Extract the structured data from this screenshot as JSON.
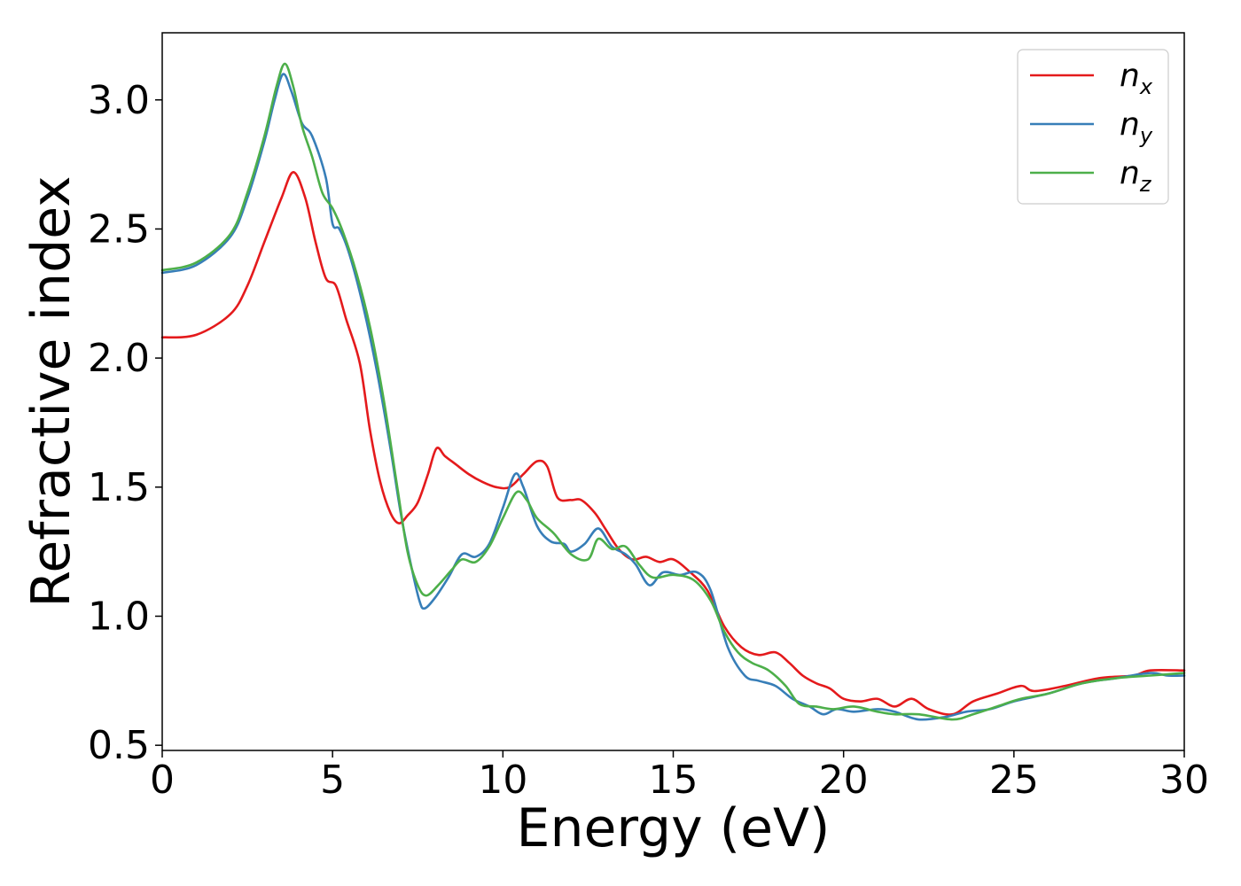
{
  "chart_data": {
    "type": "line",
    "xlabel": "Energy (eV)",
    "ylabel": "Refractive index",
    "xlim": [
      0,
      30
    ],
    "ylim": [
      0.48,
      3.26
    ],
    "xticks": [
      0,
      5,
      10,
      15,
      20,
      25,
      30
    ],
    "xtick_labels": [
      "0",
      "5",
      "10",
      "15",
      "20",
      "25",
      "30"
    ],
    "yticks": [
      0.5,
      1.0,
      1.5,
      2.0,
      2.5,
      3.0
    ],
    "ytick_labels": [
      "0.5",
      "1.0",
      "1.5",
      "2.0",
      "2.5",
      "3.0"
    ],
    "grid": false,
    "legend_position": "top-right",
    "series": [
      {
        "name": "n",
        "subscript": "x",
        "color": "#e41a1c",
        "points": [
          [
            0,
            2.08
          ],
          [
            1.0,
            2.09
          ],
          [
            2.0,
            2.17
          ],
          [
            2.5,
            2.28
          ],
          [
            3.0,
            2.45
          ],
          [
            3.5,
            2.62
          ],
          [
            3.85,
            2.72
          ],
          [
            4.2,
            2.62
          ],
          [
            4.5,
            2.45
          ],
          [
            4.8,
            2.31
          ],
          [
            5.1,
            2.28
          ],
          [
            5.4,
            2.15
          ],
          [
            5.8,
            1.98
          ],
          [
            6.1,
            1.72
          ],
          [
            6.4,
            1.52
          ],
          [
            6.7,
            1.4
          ],
          [
            6.95,
            1.36
          ],
          [
            7.2,
            1.39
          ],
          [
            7.5,
            1.44
          ],
          [
            7.8,
            1.55
          ],
          [
            8.05,
            1.65
          ],
          [
            8.3,
            1.62
          ],
          [
            8.6,
            1.59
          ],
          [
            9.0,
            1.55
          ],
          [
            9.4,
            1.52
          ],
          [
            9.8,
            1.5
          ],
          [
            10.2,
            1.5
          ],
          [
            10.6,
            1.55
          ],
          [
            11.0,
            1.6
          ],
          [
            11.3,
            1.58
          ],
          [
            11.6,
            1.46
          ],
          [
            12.0,
            1.45
          ],
          [
            12.3,
            1.45
          ],
          [
            12.7,
            1.4
          ],
          [
            13.0,
            1.34
          ],
          [
            13.4,
            1.26
          ],
          [
            13.8,
            1.22
          ],
          [
            14.2,
            1.23
          ],
          [
            14.6,
            1.21
          ],
          [
            15.0,
            1.22
          ],
          [
            15.5,
            1.17
          ],
          [
            16.0,
            1.1
          ],
          [
            16.5,
            0.96
          ],
          [
            17.0,
            0.88
          ],
          [
            17.5,
            0.85
          ],
          [
            18.0,
            0.86
          ],
          [
            18.4,
            0.82
          ],
          [
            18.8,
            0.77
          ],
          [
            19.2,
            0.74
          ],
          [
            19.6,
            0.72
          ],
          [
            20.0,
            0.68
          ],
          [
            20.5,
            0.67
          ],
          [
            21.0,
            0.68
          ],
          [
            21.5,
            0.65
          ],
          [
            22.0,
            0.68
          ],
          [
            22.5,
            0.64
          ],
          [
            23.2,
            0.62
          ],
          [
            23.8,
            0.67
          ],
          [
            24.5,
            0.7
          ],
          [
            25.2,
            0.73
          ],
          [
            25.6,
            0.71
          ],
          [
            26.5,
            0.73
          ],
          [
            27.5,
            0.76
          ],
          [
            28.5,
            0.77
          ],
          [
            29.0,
            0.79
          ],
          [
            30.0,
            0.79
          ]
        ]
      },
      {
        "name": "n",
        "subscript": "y",
        "color": "#377eb8",
        "points": [
          [
            0,
            2.33
          ],
          [
            1.0,
            2.36
          ],
          [
            2.0,
            2.47
          ],
          [
            2.5,
            2.62
          ],
          [
            3.0,
            2.84
          ],
          [
            3.3,
            3.0
          ],
          [
            3.55,
            3.1
          ],
          [
            3.8,
            3.03
          ],
          [
            4.1,
            2.91
          ],
          [
            4.4,
            2.86
          ],
          [
            4.8,
            2.7
          ],
          [
            5.0,
            2.52
          ],
          [
            5.2,
            2.5
          ],
          [
            5.5,
            2.4
          ],
          [
            5.9,
            2.2
          ],
          [
            6.3,
            1.95
          ],
          [
            6.7,
            1.65
          ],
          [
            7.0,
            1.4
          ],
          [
            7.3,
            1.2
          ],
          [
            7.55,
            1.06
          ],
          [
            7.7,
            1.03
          ],
          [
            8.0,
            1.07
          ],
          [
            8.4,
            1.15
          ],
          [
            8.8,
            1.24
          ],
          [
            9.2,
            1.23
          ],
          [
            9.6,
            1.28
          ],
          [
            10.0,
            1.42
          ],
          [
            10.35,
            1.55
          ],
          [
            10.6,
            1.5
          ],
          [
            11.0,
            1.35
          ],
          [
            11.4,
            1.29
          ],
          [
            11.8,
            1.28
          ],
          [
            12.0,
            1.25
          ],
          [
            12.4,
            1.28
          ],
          [
            12.8,
            1.34
          ],
          [
            13.2,
            1.27
          ],
          [
            13.6,
            1.24
          ],
          [
            13.9,
            1.2
          ],
          [
            14.3,
            1.12
          ],
          [
            14.7,
            1.17
          ],
          [
            15.2,
            1.16
          ],
          [
            15.7,
            1.17
          ],
          [
            16.1,
            1.1
          ],
          [
            16.6,
            0.88
          ],
          [
            17.1,
            0.77
          ],
          [
            17.5,
            0.75
          ],
          [
            18.0,
            0.73
          ],
          [
            18.5,
            0.68
          ],
          [
            19.0,
            0.65
          ],
          [
            19.4,
            0.62
          ],
          [
            19.8,
            0.64
          ],
          [
            20.3,
            0.63
          ],
          [
            21.0,
            0.64
          ],
          [
            21.5,
            0.63
          ],
          [
            22.2,
            0.6
          ],
          [
            23.0,
            0.61
          ],
          [
            23.6,
            0.63
          ],
          [
            24.3,
            0.64
          ],
          [
            25.0,
            0.67
          ],
          [
            26.0,
            0.7
          ],
          [
            27.0,
            0.74
          ],
          [
            28.0,
            0.76
          ],
          [
            29.0,
            0.78
          ],
          [
            29.5,
            0.77
          ],
          [
            30.0,
            0.77
          ]
        ]
      },
      {
        "name": "n",
        "subscript": "z",
        "color": "#4daf4a",
        "points": [
          [
            0,
            2.34
          ],
          [
            1.0,
            2.37
          ],
          [
            2.0,
            2.48
          ],
          [
            2.5,
            2.64
          ],
          [
            3.0,
            2.86
          ],
          [
            3.35,
            3.05
          ],
          [
            3.6,
            3.14
          ],
          [
            3.85,
            3.05
          ],
          [
            4.1,
            2.9
          ],
          [
            4.4,
            2.78
          ],
          [
            4.7,
            2.64
          ],
          [
            5.0,
            2.58
          ],
          [
            5.3,
            2.49
          ],
          [
            5.7,
            2.33
          ],
          [
            6.1,
            2.12
          ],
          [
            6.5,
            1.84
          ],
          [
            6.9,
            1.5
          ],
          [
            7.2,
            1.25
          ],
          [
            7.5,
            1.12
          ],
          [
            7.75,
            1.08
          ],
          [
            8.1,
            1.12
          ],
          [
            8.5,
            1.18
          ],
          [
            8.8,
            1.22
          ],
          [
            9.2,
            1.21
          ],
          [
            9.6,
            1.27
          ],
          [
            10.0,
            1.38
          ],
          [
            10.4,
            1.48
          ],
          [
            10.7,
            1.45
          ],
          [
            11.0,
            1.38
          ],
          [
            11.5,
            1.32
          ],
          [
            12.0,
            1.24
          ],
          [
            12.5,
            1.22
          ],
          [
            12.8,
            1.3
          ],
          [
            13.2,
            1.26
          ],
          [
            13.6,
            1.27
          ],
          [
            14.0,
            1.2
          ],
          [
            14.4,
            1.15
          ],
          [
            15.0,
            1.16
          ],
          [
            15.6,
            1.14
          ],
          [
            16.1,
            1.06
          ],
          [
            16.5,
            0.94
          ],
          [
            16.9,
            0.86
          ],
          [
            17.3,
            0.82
          ],
          [
            17.8,
            0.79
          ],
          [
            18.3,
            0.73
          ],
          [
            18.7,
            0.66
          ],
          [
            19.2,
            0.65
          ],
          [
            19.7,
            0.64
          ],
          [
            20.3,
            0.65
          ],
          [
            21.0,
            0.63
          ],
          [
            21.5,
            0.62
          ],
          [
            22.2,
            0.62
          ],
          [
            23.2,
            0.6
          ],
          [
            23.8,
            0.62
          ],
          [
            24.5,
            0.65
          ],
          [
            25.2,
            0.68
          ],
          [
            26.0,
            0.7
          ],
          [
            27.0,
            0.74
          ],
          [
            28.0,
            0.76
          ],
          [
            29.0,
            0.77
          ],
          [
            30.0,
            0.78
          ]
        ]
      }
    ]
  }
}
